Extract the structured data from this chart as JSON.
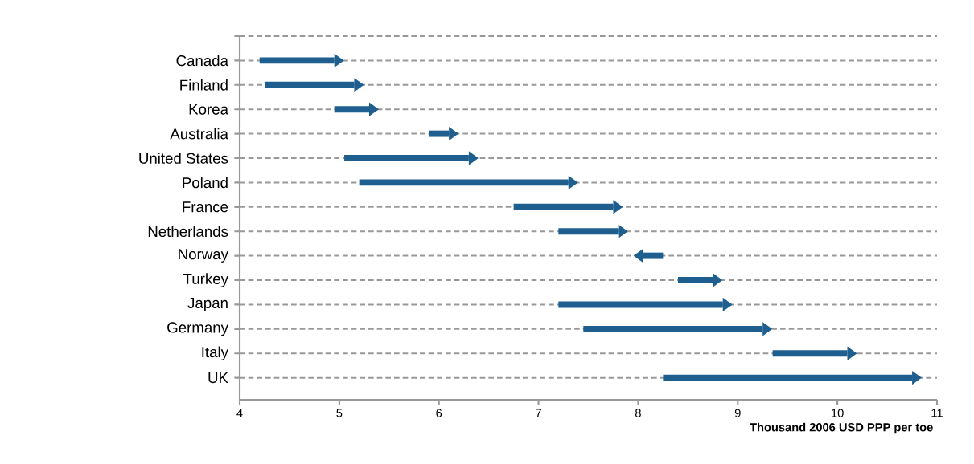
{
  "chart_data": {
    "type": "bar",
    "orientation": "horizontal",
    "xlabel": "Thousand 2006 USD PPP per toe",
    "categories": [
      "Canada",
      "Finland",
      "Korea",
      "Australia",
      "United States",
      "Poland",
      "France",
      "Netherlands",
      "Norway",
      "Turkey",
      "Japan",
      "Germany",
      "Italy",
      "UK"
    ],
    "base": [
      4.2,
      4.25,
      4.95,
      5.9,
      5.05,
      5.2,
      6.75,
      7.2,
      8.25,
      8.4,
      7.2,
      7.45,
      9.35,
      8.25
    ],
    "values": [
      0.75,
      0.9,
      0.35,
      0.2,
      1.25,
      2.1,
      1.0,
      0.6,
      -0.2,
      0.35,
      1.65,
      1.8,
      0.75,
      2.5
    ],
    "color": "#1f5f8f",
    "xlim": [
      4,
      11
    ],
    "xticks": [
      4,
      5,
      6,
      7,
      8,
      9,
      10,
      11
    ],
    "grid": "y",
    "line_style": "dashed"
  }
}
